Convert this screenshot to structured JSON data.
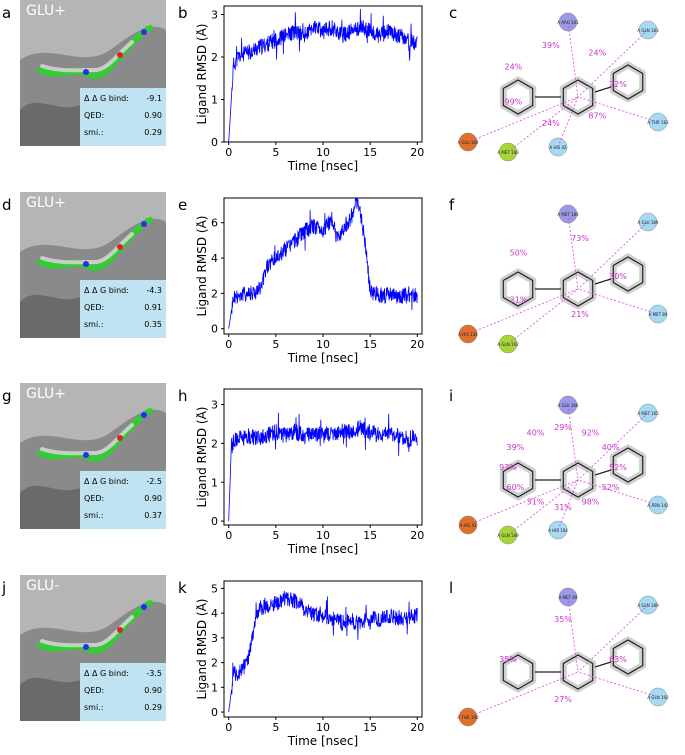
{
  "panels": [
    {
      "pose_letter": "a",
      "chart_letter": "b",
      "map_letter": "c",
      "glu": "GLU+",
      "scores": [
        {
          "label": "Δ Δ G bind:",
          "value": "-9.1"
        },
        {
          "label": "QED:",
          "value": "0.90"
        },
        {
          "label": "smi.:",
          "value": "0.29"
        }
      ],
      "map_pcts": [
        "22%",
        "87%",
        "24%",
        "99%",
        "24%",
        "39%",
        "24%"
      ],
      "map_residues": [
        "A\nARG\n101",
        "A\nGLN\n183",
        "A\nTHR\n183",
        "A\nGLU\n189",
        "A\nMET\n183",
        "A\nHIS\n42"
      ]
    },
    {
      "pose_letter": "d",
      "chart_letter": "e",
      "map_letter": "f",
      "glu": "GLU+",
      "scores": [
        {
          "label": "Δ Δ G bind:",
          "value": "-4.3"
        },
        {
          "label": "QED:",
          "value": "0.91"
        },
        {
          "label": "smi.:",
          "value": "0.35"
        }
      ],
      "map_pcts": [
        "30%",
        "21%",
        "21%",
        "50%",
        "73%"
      ],
      "map_residues": [
        "A\nMET\n184",
        "A\nGLU\n189",
        "A\nMET\n89",
        "A\nHIS\n134",
        "A\nGLN\n192"
      ]
    },
    {
      "pose_letter": "g",
      "chart_letter": "h",
      "map_letter": "i",
      "glu": "GLU+",
      "scores": [
        {
          "label": "Δ Δ G bind:",
          "value": "-2.5"
        },
        {
          "label": "QED:",
          "value": "0.90"
        },
        {
          "label": "smi.:",
          "value": "0.37"
        }
      ],
      "map_pcts": [
        "52%",
        "52%",
        "98%",
        "31%",
        "31%",
        "60%",
        "92%",
        "39%",
        "40%",
        "29%",
        "92%",
        "40%"
      ],
      "map_residues": [
        "A\nGLU\n166",
        "A\nMET\n165",
        "A\nASN\n142",
        "A\nHIS\n41",
        "A\nGLN\n189",
        "A\nHIS\n164"
      ]
    },
    {
      "pose_letter": "j",
      "chart_letter": "k",
      "map_letter": "l",
      "glu": "GLU-",
      "scores": [
        {
          "label": "Δ Δ G bind:",
          "value": "-3.5"
        },
        {
          "label": "QED:",
          "value": "0.90"
        },
        {
          "label": "smi.:",
          "value": "0.29"
        }
      ],
      "map_pcts": [
        "63%",
        "27%",
        "35%",
        "35%"
      ],
      "map_residues": [
        "A\nMET\n49",
        "A\nGLN\n189",
        "A\nGLN\n192",
        "A\nTHR\n190"
      ]
    }
  ],
  "chart_data": [
    {
      "type": "line",
      "xlabel": "Time [nsec]",
      "ylabel": "Ligand RMSD (Å)",
      "xlim": [
        -0.5,
        20.5
      ],
      "ylim": [
        0,
        3.2
      ],
      "xticks": [
        0,
        5,
        10,
        15,
        20
      ],
      "yticks": [
        0,
        1,
        2,
        3
      ],
      "color": "#0000ff",
      "x": [
        0,
        0.5,
        1,
        2,
        3,
        4,
        5,
        6,
        7,
        8,
        9,
        10,
        11,
        12,
        13,
        14,
        15,
        16,
        17,
        18,
        19,
        20
      ],
      "y": [
        0,
        1.8,
        2.0,
        2.1,
        2.2,
        2.3,
        2.4,
        2.5,
        2.6,
        2.5,
        2.7,
        2.6,
        2.7,
        2.5,
        2.6,
        2.7,
        2.6,
        2.5,
        2.6,
        2.5,
        2.4,
        2.3
      ]
    },
    {
      "type": "line",
      "xlabel": "Time [nsec]",
      "ylabel": "Ligand RMSD (Å)",
      "xlim": [
        -0.5,
        20.5
      ],
      "ylim": [
        -0.3,
        7.4
      ],
      "xticks": [
        0,
        5,
        10,
        15,
        20
      ],
      "yticks": [
        0,
        2,
        4,
        6
      ],
      "color": "#0000ff",
      "x": [
        0,
        0.5,
        1,
        2,
        3,
        3.5,
        4,
        5,
        6,
        7,
        8,
        9,
        10,
        11,
        11.5,
        12,
        13,
        13.5,
        14,
        14.5,
        15,
        16,
        17,
        18,
        19,
        20
      ],
      "y": [
        0,
        1.8,
        1.9,
        2.0,
        2.1,
        2.4,
        3.5,
        4.0,
        4.5,
        5.0,
        5.5,
        5.8,
        5.6,
        6.2,
        5.0,
        5.6,
        6.3,
        7.2,
        6.5,
        4.8,
        2.1,
        1.9,
        1.9,
        1.8,
        1.9,
        1.9
      ]
    },
    {
      "type": "line",
      "xlabel": "Time [nsec]",
      "ylabel": "Ligand RMSD (Å)",
      "xlim": [
        -0.5,
        20.5
      ],
      "ylim": [
        -0.1,
        3.4
      ],
      "xticks": [
        0,
        5,
        10,
        15,
        20
      ],
      "yticks": [
        0,
        1,
        2,
        3
      ],
      "color": "#0000ff",
      "x": [
        0,
        0.3,
        1,
        2,
        3,
        4,
        5,
        6,
        7,
        8,
        9,
        10,
        11,
        12,
        13,
        14,
        15,
        16,
        17,
        18,
        19,
        20
      ],
      "y": [
        0,
        2.1,
        2.1,
        2.2,
        2.1,
        2.2,
        2.3,
        2.2,
        2.3,
        2.2,
        2.2,
        2.3,
        2.2,
        2.3,
        2.3,
        2.4,
        2.3,
        2.2,
        2.3,
        2.2,
        2.1,
        2.2
      ]
    },
    {
      "type": "line",
      "xlabel": "Time [nsec]",
      "ylabel": "Ligand RMSD (Å)",
      "xlim": [
        -0.5,
        20.5
      ],
      "ylim": [
        -0.2,
        5.3
      ],
      "xticks": [
        0,
        5,
        10,
        15,
        20
      ],
      "yticks": [
        0,
        1,
        2,
        3,
        4,
        5
      ],
      "color": "#0000ff",
      "x": [
        0,
        0.5,
        1,
        2,
        3,
        4,
        5,
        6,
        7,
        8,
        9,
        10,
        11,
        12,
        13,
        14,
        15,
        16,
        17,
        18,
        19,
        20
      ],
      "y": [
        0,
        1.5,
        1.6,
        2.0,
        4.0,
        4.3,
        4.4,
        4.6,
        4.5,
        4.2,
        4.0,
        3.9,
        3.8,
        3.6,
        3.7,
        3.6,
        3.8,
        3.7,
        3.9,
        3.8,
        3.8,
        3.9
      ]
    }
  ]
}
